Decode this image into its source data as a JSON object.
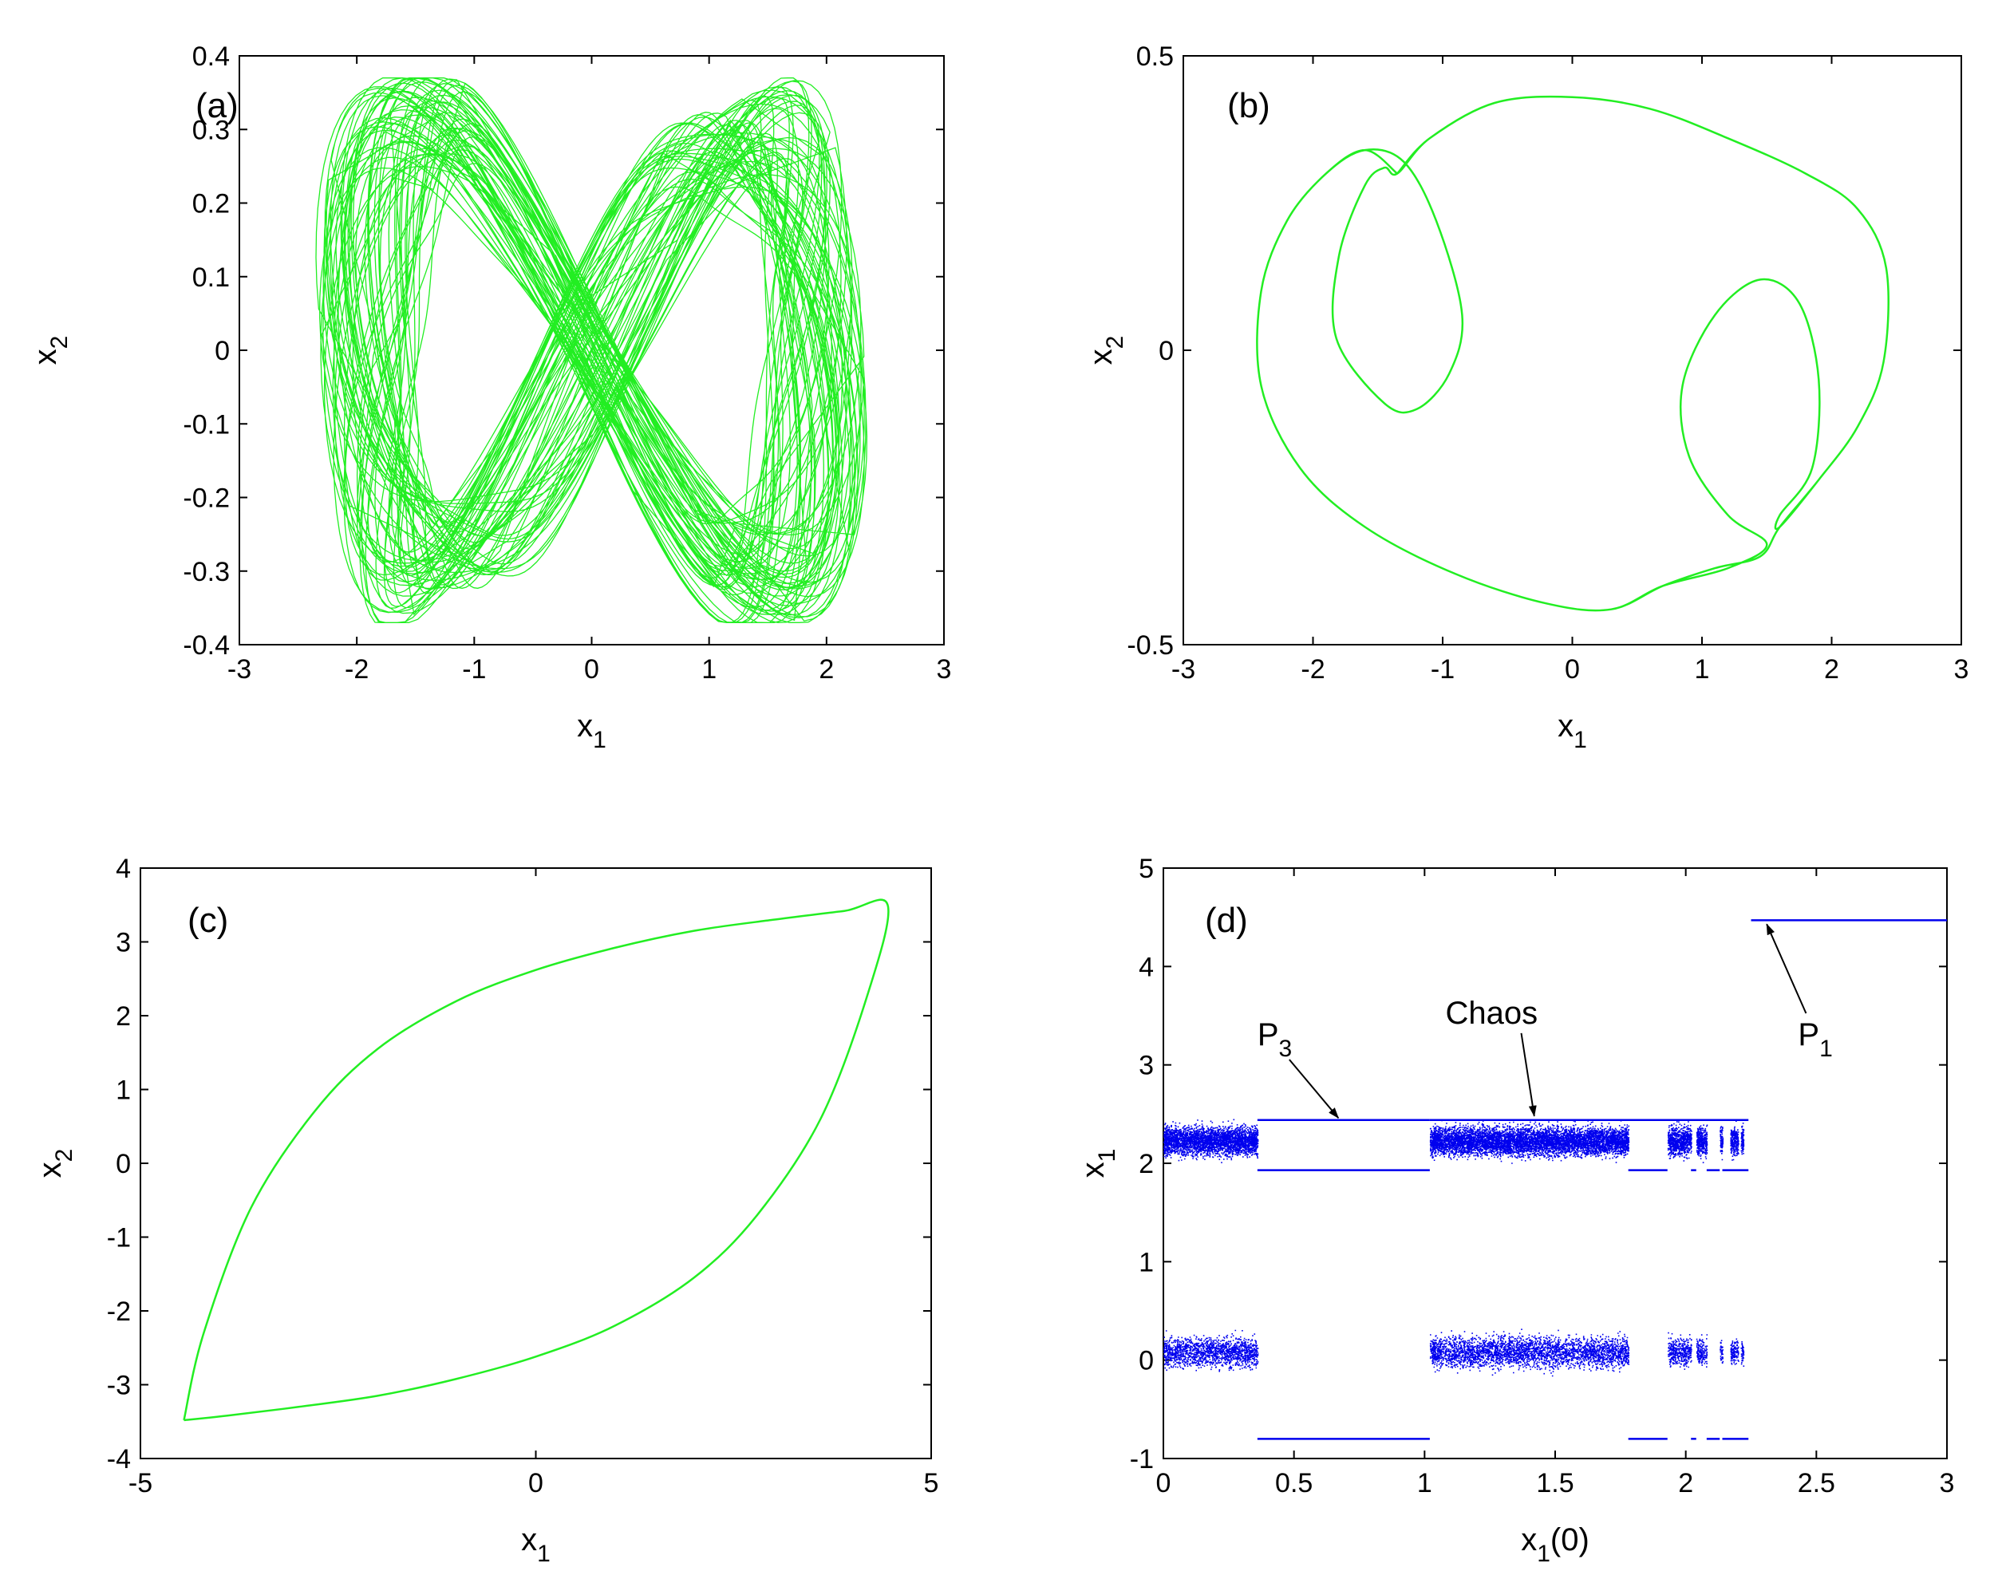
{
  "chart_data": [
    {
      "panel": "(a)",
      "type": "line",
      "xlabel": "x",
      "xlabel_sub": "1",
      "ylabel": "x",
      "ylabel_sub": "2",
      "xlim": [
        -3,
        3
      ],
      "ylim": [
        -0.4,
        0.4
      ],
      "xticks": [
        "-3",
        "-2",
        "-1",
        "0",
        "1",
        "2",
        "3"
      ],
      "yticks": [
        "-0.4",
        "-0.3",
        "-0.2",
        "-0.1",
        "0",
        "0.1",
        "0.2",
        "0.3",
        "0.4"
      ],
      "grid": false,
      "series": [
        {
          "kind": "chaotic-attractor",
          "color": "#22ee22",
          "x_range": [
            -2.4,
            2.4
          ],
          "y_range": [
            -0.37,
            0.37
          ]
        }
      ]
    },
    {
      "panel": "(b)",
      "type": "line",
      "xlabel": "x",
      "xlabel_sub": "1",
      "ylabel": "x",
      "ylabel_sub": "2",
      "xlim": [
        -3,
        3
      ],
      "ylim": [
        -0.5,
        0.5
      ],
      "xticks": [
        "-3",
        "-2",
        "-1",
        "0",
        "1",
        "2",
        "3"
      ],
      "yticks": [
        "-0.5",
        "0",
        "0.5"
      ],
      "grid": false,
      "series": [
        {
          "kind": "period-3-orbit",
          "color": "#22ee22",
          "points": [
            [
              -1.35,
              0.3
            ],
            [
              -1.1,
              0.36
            ],
            [
              -0.6,
              0.42
            ],
            [
              0.0,
              0.43
            ],
            [
              0.6,
              0.41
            ],
            [
              1.2,
              0.36
            ],
            [
              1.8,
              0.3
            ],
            [
              2.2,
              0.24
            ],
            [
              2.42,
              0.14
            ],
            [
              2.4,
              -0.02
            ],
            [
              2.2,
              -0.13
            ],
            [
              1.9,
              -0.22
            ],
            [
              1.6,
              -0.3
            ],
            [
              1.45,
              -0.35
            ],
            [
              1.1,
              -0.37
            ],
            [
              0.7,
              -0.4
            ],
            [
              0.3,
              -0.44
            ],
            [
              -0.2,
              -0.43
            ],
            [
              -0.9,
              -0.38
            ],
            [
              -1.6,
              -0.3
            ],
            [
              -2.1,
              -0.2
            ],
            [
              -2.4,
              -0.06
            ],
            [
              -2.4,
              0.1
            ],
            [
              -2.2,
              0.22
            ],
            [
              -1.9,
              0.3
            ],
            [
              -1.6,
              0.34
            ],
            [
              -1.3,
              0.32
            ],
            [
              -1.05,
              0.22
            ],
            [
              -0.85,
              0.06
            ],
            [
              -0.95,
              -0.04
            ],
            [
              -1.2,
              -0.1
            ],
            [
              -1.45,
              -0.09
            ],
            [
              -1.82,
              0.02
            ],
            [
              -1.8,
              0.16
            ],
            [
              -1.6,
              0.28
            ],
            [
              -1.45,
              0.31
            ],
            [
              -1.35,
              0.3
            ],
            [
              -1.1,
              0.36
            ],
            [
              -0.6,
              0.42
            ],
            [
              0.0,
              0.43
            ],
            [
              0.6,
              0.41
            ],
            [
              1.2,
              0.36
            ],
            [
              1.8,
              0.3
            ],
            [
              2.2,
              0.24
            ],
            [
              2.42,
              0.14
            ],
            [
              2.4,
              -0.02
            ],
            [
              2.2,
              -0.13
            ],
            [
              1.9,
              -0.22
            ],
            [
              1.6,
              -0.3
            ],
            [
              1.6,
              -0.28
            ],
            [
              1.85,
              -0.2
            ],
            [
              1.9,
              -0.05
            ],
            [
              1.75,
              0.08
            ],
            [
              1.45,
              0.12
            ],
            [
              1.1,
              0.06
            ],
            [
              0.85,
              -0.06
            ],
            [
              0.9,
              -0.18
            ],
            [
              1.2,
              -0.28
            ],
            [
              1.5,
              -0.33
            ],
            [
              1.2,
              -0.37
            ],
            [
              0.7,
              -0.4
            ],
            [
              0.3,
              -0.44
            ],
            [
              -0.2,
              -0.43
            ],
            [
              -0.9,
              -0.38
            ],
            [
              -1.6,
              -0.3
            ],
            [
              -2.1,
              -0.2
            ],
            [
              -2.4,
              -0.06
            ],
            [
              -2.4,
              0.1
            ],
            [
              -2.2,
              0.22
            ],
            [
              -1.9,
              0.3
            ],
            [
              -1.6,
              0.34
            ],
            [
              -1.35,
              0.3
            ]
          ]
        }
      ]
    },
    {
      "panel": "(c)",
      "type": "line",
      "xlabel": "x",
      "xlabel_sub": "1",
      "ylabel": "x",
      "ylabel_sub": "2",
      "xlim": [
        -5,
        5
      ],
      "ylim": [
        -4,
        4
      ],
      "xticks": [
        "-5",
        "0",
        "5"
      ],
      "yticks": [
        "-4",
        "-3",
        "-2",
        "-1",
        "0",
        "1",
        "2",
        "3",
        "4"
      ],
      "grid": false,
      "series": [
        {
          "kind": "period-1-orbit",
          "color": "#22ee22",
          "points": [
            [
              -4.45,
              -3.48
            ],
            [
              -4.2,
              -2.3
            ],
            [
              -3.6,
              -0.6
            ],
            [
              -2.8,
              0.7
            ],
            [
              -2.0,
              1.55
            ],
            [
              -1.0,
              2.2
            ],
            [
              0.0,
              2.62
            ],
            [
              1.0,
              2.92
            ],
            [
              2.0,
              3.15
            ],
            [
              3.0,
              3.3
            ],
            [
              3.9,
              3.42
            ],
            [
              4.45,
              3.5
            ],
            [
              4.2,
              2.3
            ],
            [
              3.6,
              0.6
            ],
            [
              2.8,
              -0.7
            ],
            [
              2.0,
              -1.55
            ],
            [
              1.0,
              -2.2
            ],
            [
              0.0,
              -2.62
            ],
            [
              -1.0,
              -2.92
            ],
            [
              -2.0,
              -3.15
            ],
            [
              -3.0,
              -3.3
            ],
            [
              -3.9,
              -3.42
            ],
            [
              -4.45,
              -3.48
            ]
          ]
        }
      ]
    },
    {
      "panel": "(d)",
      "type": "scatter",
      "xlabel": "x",
      "xlabel_sub": "1",
      "xlabel_suffix": "(0)",
      "ylabel": "x",
      "ylabel_sub": "1",
      "xlim": [
        0,
        3
      ],
      "ylim": [
        -1,
        5
      ],
      "xticks": [
        "0",
        "0.5",
        "1",
        "1.5",
        "2",
        "2.5",
        "3"
      ],
      "yticks": [
        "-1",
        "0",
        "1",
        "2",
        "3",
        "4",
        "5"
      ],
      "grid": false,
      "color": "#0000ee",
      "chaotic_regions": [
        {
          "x": [
            0.0,
            0.36
          ],
          "upper": [
            2.0,
            2.45
          ],
          "lower": [
            -0.3,
            0.45
          ]
        },
        {
          "x": [
            1.02,
            1.78
          ],
          "upper": [
            2.0,
            2.45
          ],
          "lower": [
            -0.3,
            0.45
          ]
        },
        {
          "x": [
            1.93,
            2.02
          ],
          "upper": [
            2.0,
            2.45
          ],
          "lower": [
            -0.2,
            0.45
          ]
        },
        {
          "x": [
            2.04,
            2.08
          ],
          "upper": [
            2.0,
            2.45
          ],
          "lower": [
            -0.2,
            0.45
          ]
        },
        {
          "x": [
            2.13,
            2.14
          ],
          "upper": [
            2.0,
            2.45
          ],
          "lower": [
            -0.2,
            0.4
          ]
        },
        {
          "x": [
            2.17,
            2.2
          ],
          "upper": [
            2.0,
            2.45
          ],
          "lower": [
            -0.2,
            0.4
          ]
        },
        {
          "x": [
            2.21,
            2.22
          ],
          "upper": [
            2.0,
            2.45
          ],
          "lower": [
            -0.2,
            0.4
          ]
        }
      ],
      "periodic_lines": [
        {
          "x": [
            0.36,
            1.02
          ],
          "y": 2.44
        },
        {
          "x": [
            0.36,
            1.02
          ],
          "y": 1.93
        },
        {
          "x": [
            0.36,
            1.02
          ],
          "y": -0.8
        },
        {
          "x": [
            1.02,
            2.24
          ],
          "y": 2.44
        },
        {
          "x": [
            1.78,
            1.93
          ],
          "y": 1.93
        },
        {
          "x": [
            1.78,
            1.93
          ],
          "y": -0.8
        },
        {
          "x": [
            2.02,
            2.04
          ],
          "y": 1.93
        },
        {
          "x": [
            2.02,
            2.04
          ],
          "y": -0.8
        },
        {
          "x": [
            2.08,
            2.13
          ],
          "y": 1.93
        },
        {
          "x": [
            2.08,
            2.13
          ],
          "y": -0.8
        },
        {
          "x": [
            2.14,
            2.24
          ],
          "y": 1.93
        },
        {
          "x": [
            2.14,
            2.24
          ],
          "y": -0.8
        },
        {
          "x": [
            2.25,
            3.0
          ],
          "y": 4.47
        }
      ],
      "annotations": [
        {
          "text": "P",
          "sub": "3",
          "tx": 0.36,
          "ty": 3.2,
          "ax": 0.67,
          "ay": 2.46
        },
        {
          "text": "Chaos",
          "sub": "",
          "tx": 1.08,
          "ty": 3.42,
          "ax": 1.42,
          "ay": 2.48
        },
        {
          "text": "P",
          "sub": "1",
          "tx": 2.43,
          "ty": 3.2,
          "ax": 2.31,
          "ay": 4.43
        }
      ]
    }
  ]
}
